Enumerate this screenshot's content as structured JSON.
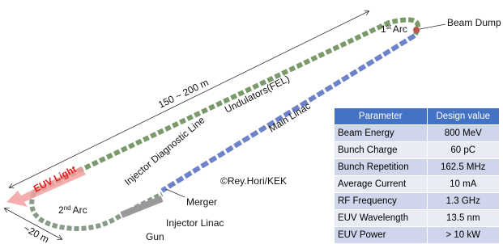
{
  "labels": {
    "arc1": {
      "number": "1",
      "suffix": "st",
      "text": "Arc"
    },
    "beam_dump": "Beam Dump",
    "length": "150 ~ 200 m",
    "undulators": "Undulators(FEL)",
    "main_linac": "Main Linac",
    "injector_diagnostic": "Injector Diagnostic Line",
    "euv_light": "EUV Light",
    "credit": "©Rey.Hori/KEK",
    "merger": "Merger",
    "arc2": {
      "number": "2",
      "suffix": "nd",
      "text": "Arc"
    },
    "injector_linac": "Injector Linac",
    "gun": "Gun",
    "width": "~20 m"
  },
  "table": {
    "header": [
      "Parameter",
      "Design value"
    ],
    "rows": [
      [
        "Beam Energy",
        "800 MeV"
      ],
      [
        "Bunch Charge",
        "60 pC"
      ],
      [
        "Bunch Repetition",
        "162.5 MHz"
      ],
      [
        "Average Current",
        "10 mA"
      ],
      [
        "RF Frequency",
        "1.3 GHz"
      ],
      [
        "EUV Wavelength",
        "13.5 nm"
      ],
      [
        "EUV Power",
        "> 10 kW"
      ]
    ]
  }
}
